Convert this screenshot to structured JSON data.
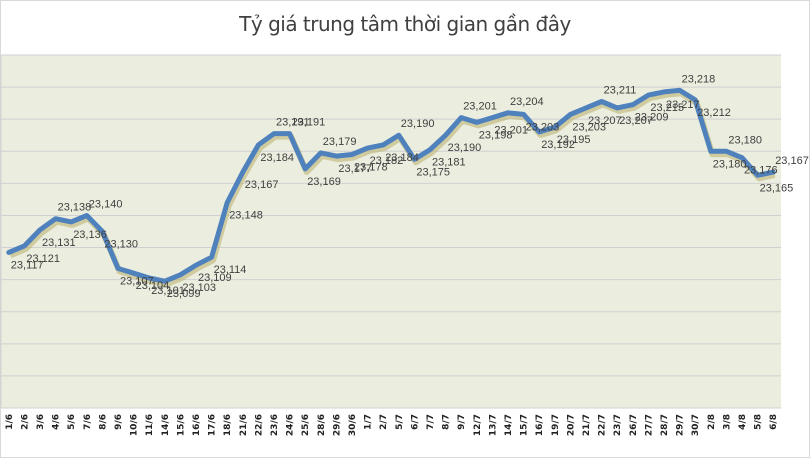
{
  "chart_data": {
    "type": "line",
    "title": "Tỷ giá trung tâm thời gian gần đây",
    "xlabel": "",
    "ylabel": "",
    "ylim": [
      23020,
      23240
    ],
    "grid": true,
    "legend": "none",
    "categories": [
      "1/6",
      "2/6",
      "3/6",
      "4/6",
      "5/6",
      "7/6",
      "8/6",
      "9/6",
      "10/6",
      "11/6",
      "14/6",
      "15/6",
      "16/6",
      "17/6",
      "18/6",
      "21/6",
      "22/6",
      "23/6",
      "24/6",
      "25/6",
      "28/6",
      "29/6",
      "30/6",
      "1/7",
      "2/7",
      "5/7",
      "6/7",
      "7/7",
      "8/7",
      "9/7",
      "12/7",
      "13/7",
      "14/7",
      "15/7",
      "16/7",
      "19/7",
      "20/7",
      "21/7",
      "22/7",
      "23/7",
      "26/7",
      "27/7",
      "28/7",
      "29/7",
      "30/7",
      "2/8",
      "3/8",
      "4/8",
      "5/8",
      "6/8"
    ],
    "series": [
      {
        "name": "Tỷ giá trung tâm",
        "color": "#4F81BD",
        "values": [
          23117,
          23121,
          23131,
          23138,
          23136,
          23140,
          23130,
          23107,
          23104,
          23101,
          23099,
          23103,
          23109,
          23114,
          23148,
          23167,
          23184,
          23191,
          23191,
          23169,
          23179,
          23177,
          23178,
          23182,
          23184,
          23190,
          23175,
          23181,
          23190,
          23201,
          23198,
          23201,
          23204,
          23203,
          23192,
          23195,
          23203,
          23207,
          23211,
          23207,
          23209,
          23215,
          23217,
          23218,
          23212,
          23180,
          23180,
          23176,
          23165,
          23167
        ]
      }
    ],
    "labels": [
      "23,117",
      "23,121",
      "23,131",
      "23,138",
      "23,136",
      "23,140",
      "23,130",
      "23,107",
      "23,104",
      "23,101",
      "23,099",
      "23,103",
      "23,109",
      "23,114",
      "23,148",
      "23,167",
      "23,184",
      "23,191",
      "23,191",
      "23,169",
      "23,179",
      "23,177",
      "23,178",
      "23,182",
      "23,184",
      "23,190",
      "23,175",
      "23,181",
      "23,190",
      "23,201",
      "23,198",
      "23,201",
      "23,204",
      "23,203",
      "23,192",
      "23,195",
      "23,203",
      "23,207",
      "23,211",
      "23,207",
      "23,209",
      "23,215",
      "23,217",
      "23,218",
      "23,212",
      "23,180",
      "23,180",
      "23,176",
      "23,165",
      "23,167"
    ]
  },
  "colors": {
    "plot_bg": "#EBEEDF",
    "grid": "#D0D0D0",
    "line": "#4F81BD",
    "shadow": "#B8AE6A"
  }
}
